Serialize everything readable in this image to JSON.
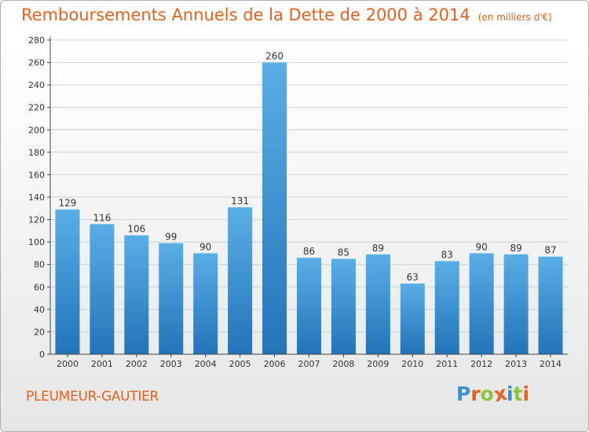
{
  "chart_data": {
    "type": "bar",
    "title": "Remboursements Annuels de la Dette de 2000 à 2014",
    "subtitle": "(en milliers d'€)",
    "categories": [
      "2000",
      "2001",
      "2002",
      "2003",
      "2004",
      "2005",
      "2006",
      "2007",
      "2008",
      "2009",
      "2010",
      "2011",
      "2012",
      "2013",
      "2014"
    ],
    "values": [
      129,
      116,
      106,
      99,
      90,
      131,
      260,
      86,
      85,
      89,
      63,
      83,
      90,
      89,
      87
    ],
    "ylim": [
      0,
      280
    ],
    "yticks": [
      0,
      20,
      40,
      60,
      80,
      100,
      120,
      140,
      160,
      180,
      200,
      220,
      240,
      260,
      280
    ],
    "grid": true,
    "colors": {
      "bar_light": "#5aaee6",
      "bar_dark": "#2274b8",
      "title": "#e8611a",
      "grid": "#d0d0d0"
    }
  },
  "commune": "PLEUMEUR-GAUTIER",
  "logo": {
    "letters": [
      "P",
      "r",
      "o",
      "x",
      "i",
      "t",
      "i"
    ],
    "colors": [
      "#3a8fd6",
      "#e8611a",
      "#8cc63f",
      "#e8611a",
      "#3a8fd6",
      "#8cc63f",
      "#e8611a"
    ]
  }
}
